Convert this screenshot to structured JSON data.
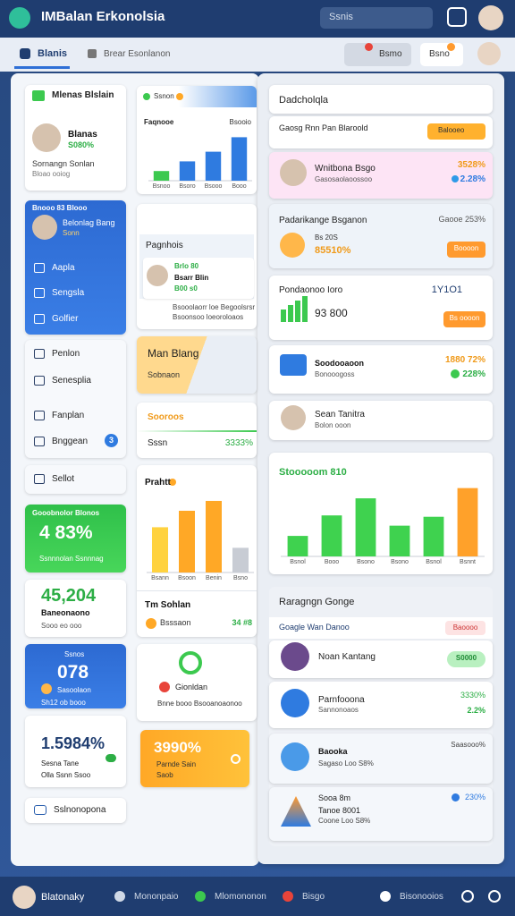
{
  "header": {
    "title": "IMBalan Erkonolsia",
    "search": "Ssnis"
  },
  "toolbar": {
    "tabs": [
      "Blanis",
      "Brear Esonlanon"
    ],
    "buttons": [
      "Bsmo",
      "Bsno"
    ]
  },
  "left": {
    "profile": {
      "heading": "Mlenas Blslain",
      "name": "Blanas",
      "value": "S080%",
      "line1": "Sornangn Sonlan",
      "line2": "Bloao ooiog"
    },
    "menu_card": {
      "heading": "Bnooo 83 Blooo",
      "name": "Belonlag Bang",
      "sub": "Sonn",
      "items": [
        "Aapla",
        "Sengsla",
        "Golfier"
      ]
    },
    "nav": {
      "items": [
        "Penlon",
        "Senesplia",
        "Fanplan",
        "Bnggean"
      ],
      "badge": "3"
    },
    "selected": "Sellot",
    "green_stat": {
      "label": "Gooobnolor Blonos",
      "value": "4 83%",
      "sub": "Ssnnnolan Ssnnnag"
    },
    "white_stat": {
      "value": "45,204",
      "label": "Baneonaono",
      "sub": "Sooo eo ooo"
    },
    "blue_stat": {
      "label": "Ssnos",
      "value": "078",
      "sub": "Sasoolaon",
      "sub2": "Sh12 ob booo"
    },
    "rate_stat": {
      "value": "1.5984%",
      "label": "Sesna Tane",
      "sub": "Olla Ssnn Ssoo"
    },
    "button": "Sslnonopona"
  },
  "middle": {
    "tab": "Ssnon",
    "profile_card": {
      "heading": "Pagnhois",
      "tag": "Brlo 80",
      "name": "Bsarr Blin",
      "value": "B00 s0",
      "line1": "Bsooolaorr loe Begoolsrsr",
      "line2": "Bsoonsoo loeoroloaos"
    },
    "banner": {
      "title": "Man Blang",
      "sub": "Sobnaon"
    },
    "success": {
      "title": "Sooroos",
      "label": "Sssn",
      "value": "3333%"
    },
    "chart_footer": {
      "title": "Tm Sohlan",
      "label": "Bsssaon",
      "value": "34 #8"
    },
    "ring_card": {
      "title": "Gionldan",
      "sub": "Bnne booo Bsooanoaonoo"
    },
    "orange_card": {
      "value": "3990%",
      "line1": "Parnde Sain",
      "line2": "Saob"
    }
  },
  "right": {
    "title": "Dadcholqla",
    "row": {
      "label": "Gaosg Rnn Pan Blaroold",
      "badge": "Balooeo"
    },
    "pink": {
      "name": "Wnitbona Bsgo",
      "sub": "Gasosaolaoossoo",
      "value1": "3528%",
      "value2": "2.28%"
    },
    "package": {
      "title": "Padarikange Bsganon",
      "meta": "Gaooe 253%",
      "tag": "Bs 20S",
      "value": "85510%",
      "button": "Boooon"
    },
    "position": {
      "title": "Pondaonoo Ioro",
      "meta": "1Y1O1",
      "value": "93 800",
      "button": "Bs oooon"
    },
    "documents": {
      "title": "Soodooaoon",
      "sub": "Bonooogoss",
      "value1": "1880 72%",
      "value2": "228%"
    },
    "person": {
      "name": "Sean Tanitra",
      "sub": "Bolon ooon"
    },
    "list": {
      "title": "Raragngn Gonge",
      "row": "Goagle Wan Danoo",
      "badge": "Baoooo",
      "items": [
        {
          "title": "Noan Kantang",
          "pill": "S0000"
        },
        {
          "title": "Parnfooona",
          "sub": "Sannonoaos",
          "value1": "3330%",
          "value2": "2.2%"
        },
        {
          "title": "Baooka",
          "sub": "Sagaso Loo S8%",
          "value1": "Saasooo%"
        },
        {
          "title": "Sooa 8m",
          "sub": "Tanoe 8001",
          "sub2": "Coone Loo S8%",
          "value1": "230%"
        }
      ]
    }
  },
  "footer": {
    "user": "Blatonaky",
    "items": [
      "Mononpaio",
      "Mlomononon",
      "Bisgo",
      "Bisonooios"
    ]
  },
  "chart_data": [
    {
      "type": "bar",
      "title": "Faqnooe",
      "subtitle": "Bsooio",
      "categories": [
        "Bsnoo",
        "Bsoro",
        "Bsooo",
        "Booo"
      ],
      "values": [
        2,
        4,
        6,
        9
      ],
      "colors": [
        "#3cc94f",
        "#2f7be0",
        "#2f7be0",
        "#2f7be0"
      ],
      "ylim": [
        0,
        10
      ]
    },
    {
      "type": "bar",
      "title": "Prahtt",
      "categories": [
        "Bsann",
        "Bsoon",
        "Benin",
        "Bsno"
      ],
      "values": [
        5.5,
        7.5,
        8.7,
        3
      ],
      "colors": [
        "#ffd23f",
        "#ffa826",
        "#ffa826",
        "#c8ccd4"
      ],
      "ylim": [
        0,
        10
      ]
    },
    {
      "type": "bar",
      "title": "Stooooom 810",
      "categories": [
        "Bsnol",
        "Booo",
        "Bsono",
        "Bsono",
        "Bsnol",
        "Bsnnt"
      ],
      "values": [
        3,
        6,
        8.5,
        4.5,
        5.8,
        10
      ],
      "colors": [
        "#3fd24f",
        "#3fd24f",
        "#3fd24f",
        "#3fd24f",
        "#3fd24f",
        "#ffa12a"
      ],
      "ylim": [
        0,
        11
      ]
    }
  ]
}
